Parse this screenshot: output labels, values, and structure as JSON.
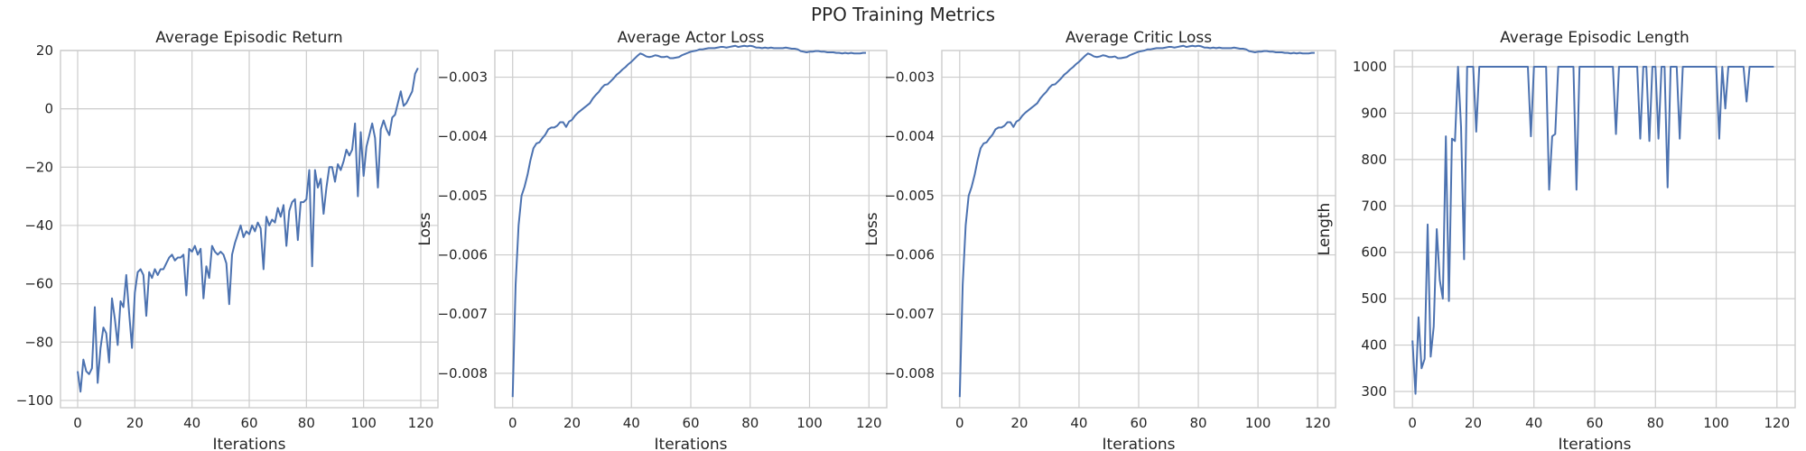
{
  "figure": {
    "title": "PPO Training Metrics",
    "line_color": "#4c72b0",
    "grid_color": "#cccccc",
    "text_color": "#262626"
  },
  "chart_data": [
    {
      "type": "line",
      "title": "Average Episodic Return",
      "xlabel": "Iterations",
      "ylabel": "",
      "xlim": [
        -6,
        126
      ],
      "ylim": [
        -102.5,
        20
      ],
      "xticks": [
        0,
        20,
        40,
        60,
        80,
        100,
        120
      ],
      "yticks": [
        -100,
        -80,
        -60,
        -40,
        -20,
        0,
        20
      ],
      "ytick_labels": [
        "−100",
        "−80",
        "−60",
        "−40",
        "−20",
        "0",
        "20"
      ],
      "grid": true,
      "x": [
        0,
        1,
        2,
        3,
        4,
        5,
        6,
        7,
        8,
        9,
        10,
        11,
        12,
        13,
        14,
        15,
        16,
        17,
        18,
        19,
        20,
        21,
        22,
        23,
        24,
        25,
        26,
        27,
        28,
        29,
        30,
        31,
        32,
        33,
        34,
        35,
        36,
        37,
        38,
        39,
        40,
        41,
        42,
        43,
        44,
        45,
        46,
        47,
        48,
        49,
        50,
        51,
        52,
        53,
        54,
        55,
        56,
        57,
        58,
        59,
        60,
        61,
        62,
        63,
        64,
        65,
        66,
        67,
        68,
        69,
        70,
        71,
        72,
        73,
        74,
        75,
        76,
        77,
        78,
        79,
        80,
        81,
        82,
        83,
        84,
        85,
        86,
        87,
        88,
        89,
        90,
        91,
        92,
        93,
        94,
        95,
        96,
        97,
        98,
        99,
        100,
        101,
        102,
        103,
        104,
        105,
        106,
        107,
        108,
        109,
        110,
        111,
        112,
        113,
        114,
        115,
        116,
        117,
        118,
        119
      ],
      "series": [
        {
          "values": [
            -90,
            -97,
            -86,
            -90,
            -91,
            -89,
            -68,
            -94,
            -82,
            -75,
            -77,
            -87,
            -65,
            -72,
            -81,
            -66,
            -68,
            -57,
            -70,
            -82,
            -63,
            -56,
            -55,
            -57,
            -71,
            -56,
            -58,
            -55,
            -57,
            -55,
            -55,
            -53,
            -51,
            -50,
            -52,
            -51,
            -51,
            -50,
            -64,
            -48,
            -49,
            -47,
            -50,
            -48,
            -65,
            -54,
            -58,
            -47,
            -49,
            -50,
            -49,
            -50,
            -53,
            -67,
            -50,
            -46,
            -43,
            -40,
            -44,
            -42,
            -43,
            -40,
            -42,
            -39,
            -41,
            -55,
            -37,
            -40,
            -38,
            -39,
            -34,
            -37,
            -33,
            -47,
            -35,
            -32,
            -31,
            -45,
            -32,
            -32,
            -31,
            -21,
            -54,
            -21,
            -27,
            -24,
            -36,
            -27,
            -20,
            -20,
            -25,
            -19,
            -21,
            -18,
            -14,
            -16,
            -14,
            -5,
            -30,
            -8,
            -23,
            -13,
            -9,
            -5,
            -10,
            -27,
            -7,
            -4,
            -7,
            -9,
            -3,
            -2,
            2,
            6,
            1,
            2,
            4,
            6,
            12,
            14
          ]
        }
      ]
    },
    {
      "type": "line",
      "title": "Average Actor Loss",
      "xlabel": "Iterations",
      "ylabel": "Loss",
      "xlim": [
        -6,
        126
      ],
      "ylim": [
        -0.00858,
        -0.00255
      ],
      "xticks": [
        0,
        20,
        40,
        60,
        80,
        100,
        120
      ],
      "yticks": [
        -0.008,
        -0.007,
        -0.006,
        -0.005,
        -0.004,
        -0.003
      ],
      "ytick_labels": [
        "−0.008",
        "−0.007",
        "−0.006",
        "−0.005",
        "−0.004",
        "−0.003"
      ],
      "grid": true,
      "x": [
        0,
        1,
        2,
        3,
        4,
        5,
        6,
        7,
        8,
        9,
        10,
        11,
        12,
        13,
        14,
        15,
        16,
        17,
        18,
        19,
        20,
        21,
        22,
        23,
        24,
        25,
        26,
        27,
        28,
        29,
        30,
        31,
        32,
        33,
        34,
        35,
        36,
        37,
        38,
        39,
        40,
        41,
        42,
        43,
        44,
        45,
        46,
        47,
        48,
        49,
        50,
        51,
        52,
        53,
        54,
        55,
        56,
        57,
        58,
        59,
        60,
        61,
        62,
        63,
        64,
        65,
        66,
        67,
        68,
        69,
        70,
        71,
        72,
        73,
        74,
        75,
        76,
        77,
        78,
        79,
        80,
        81,
        82,
        83,
        84,
        85,
        86,
        87,
        88,
        89,
        90,
        91,
        92,
        93,
        94,
        95,
        96,
        97,
        98,
        99,
        100,
        101,
        102,
        103,
        104,
        105,
        106,
        107,
        108,
        109,
        110,
        111,
        112,
        113,
        114,
        115,
        116,
        117,
        118,
        119
      ],
      "series": [
        {
          "values": [
            -0.0084,
            -0.0065,
            -0.0055,
            -0.005,
            -0.00485,
            -0.00465,
            -0.0044,
            -0.0042,
            -0.00412,
            -0.0041,
            -0.00403,
            -0.00397,
            -0.00388,
            -0.00385,
            -0.00385,
            -0.00382,
            -0.00376,
            -0.00376,
            -0.00384,
            -0.00375,
            -0.00372,
            -0.00365,
            -0.0036,
            -0.00356,
            -0.00352,
            -0.00348,
            -0.00344,
            -0.00336,
            -0.0033,
            -0.00325,
            -0.00318,
            -0.00313,
            -0.00312,
            -0.00307,
            -0.00302,
            -0.00296,
            -0.00292,
            -0.00287,
            -0.00283,
            -0.00278,
            -0.00274,
            -0.00269,
            -0.00264,
            -0.0026,
            -0.00262,
            -0.00265,
            -0.00266,
            -0.00265,
            -0.00263,
            -0.00264,
            -0.00266,
            -0.00266,
            -0.00265,
            -0.00268,
            -0.00268,
            -0.00267,
            -0.00266,
            -0.00263,
            -0.00261,
            -0.00259,
            -0.00257,
            -0.00256,
            -0.00255,
            -0.00253,
            -0.00253,
            -0.00252,
            -0.00251,
            -0.00251,
            -0.00251,
            -0.0025,
            -0.00249,
            -0.00249,
            -0.0025,
            -0.00249,
            -0.00248,
            -0.00247,
            -0.00249,
            -0.00248,
            -0.00247,
            -0.00248,
            -0.00247,
            -0.00248,
            -0.0025,
            -0.0025,
            -0.00251,
            -0.0025,
            -0.00251,
            -0.0025,
            -0.00251,
            -0.00251,
            -0.00251,
            -0.00251,
            -0.0025,
            -0.00251,
            -0.00252,
            -0.00252,
            -0.00253,
            -0.00256,
            -0.00257,
            -0.00258,
            -0.00257,
            -0.00257,
            -0.00256,
            -0.00256,
            -0.00257,
            -0.00257,
            -0.00258,
            -0.00258,
            -0.00258,
            -0.00259,
            -0.00259,
            -0.0026,
            -0.00259,
            -0.0026,
            -0.00259,
            -0.0026,
            -0.0026,
            -0.0026,
            -0.00259,
            -0.00259
          ]
        }
      ]
    },
    {
      "type": "line",
      "title": "Average Critic Loss",
      "xlabel": "Iterations",
      "ylabel": "Loss",
      "xlim": [
        -6,
        126
      ],
      "ylim": [
        -0.00858,
        -0.00255
      ],
      "xticks": [
        0,
        20,
        40,
        60,
        80,
        100,
        120
      ],
      "yticks": [
        -0.008,
        -0.007,
        -0.006,
        -0.005,
        -0.004,
        -0.003
      ],
      "ytick_labels": [
        "−0.008",
        "−0.007",
        "−0.006",
        "−0.005",
        "−0.004",
        "−0.003"
      ],
      "grid": true,
      "x": [
        0,
        1,
        2,
        3,
        4,
        5,
        6,
        7,
        8,
        9,
        10,
        11,
        12,
        13,
        14,
        15,
        16,
        17,
        18,
        19,
        20,
        21,
        22,
        23,
        24,
        25,
        26,
        27,
        28,
        29,
        30,
        31,
        32,
        33,
        34,
        35,
        36,
        37,
        38,
        39,
        40,
        41,
        42,
        43,
        44,
        45,
        46,
        47,
        48,
        49,
        50,
        51,
        52,
        53,
        54,
        55,
        56,
        57,
        58,
        59,
        60,
        61,
        62,
        63,
        64,
        65,
        66,
        67,
        68,
        69,
        70,
        71,
        72,
        73,
        74,
        75,
        76,
        77,
        78,
        79,
        80,
        81,
        82,
        83,
        84,
        85,
        86,
        87,
        88,
        89,
        90,
        91,
        92,
        93,
        94,
        95,
        96,
        97,
        98,
        99,
        100,
        101,
        102,
        103,
        104,
        105,
        106,
        107,
        108,
        109,
        110,
        111,
        112,
        113,
        114,
        115,
        116,
        117,
        118,
        119
      ],
      "series": [
        {
          "values": [
            -0.0084,
            -0.0065,
            -0.0055,
            -0.005,
            -0.00485,
            -0.00465,
            -0.0044,
            -0.0042,
            -0.00412,
            -0.0041,
            -0.00403,
            -0.00397,
            -0.00388,
            -0.00385,
            -0.00385,
            -0.00382,
            -0.00376,
            -0.00376,
            -0.00384,
            -0.00375,
            -0.00372,
            -0.00365,
            -0.0036,
            -0.00356,
            -0.00352,
            -0.00348,
            -0.00344,
            -0.00336,
            -0.0033,
            -0.00325,
            -0.00318,
            -0.00313,
            -0.00312,
            -0.00307,
            -0.00302,
            -0.00296,
            -0.00292,
            -0.00287,
            -0.00283,
            -0.00278,
            -0.00274,
            -0.00269,
            -0.00264,
            -0.0026,
            -0.00262,
            -0.00265,
            -0.00266,
            -0.00265,
            -0.00263,
            -0.00264,
            -0.00266,
            -0.00266,
            -0.00265,
            -0.00268,
            -0.00268,
            -0.00267,
            -0.00266,
            -0.00263,
            -0.00261,
            -0.00259,
            -0.00257,
            -0.00256,
            -0.00255,
            -0.00253,
            -0.00253,
            -0.00252,
            -0.00251,
            -0.00251,
            -0.00251,
            -0.0025,
            -0.00249,
            -0.00249,
            -0.0025,
            -0.00249,
            -0.00248,
            -0.00247,
            -0.00249,
            -0.00248,
            -0.00247,
            -0.00248,
            -0.00247,
            -0.00248,
            -0.0025,
            -0.0025,
            -0.00251,
            -0.0025,
            -0.00251,
            -0.0025,
            -0.00251,
            -0.00251,
            -0.00251,
            -0.00251,
            -0.0025,
            -0.00251,
            -0.00252,
            -0.00252,
            -0.00253,
            -0.00256,
            -0.00257,
            -0.00258,
            -0.00257,
            -0.00257,
            -0.00256,
            -0.00256,
            -0.00257,
            -0.00257,
            -0.00258,
            -0.00258,
            -0.00258,
            -0.00259,
            -0.00259,
            -0.0026,
            -0.00259,
            -0.0026,
            -0.00259,
            -0.0026,
            -0.0026,
            -0.0026,
            -0.00259,
            -0.00259
          ]
        }
      ]
    },
    {
      "type": "line",
      "title": "Average Episodic Length",
      "xlabel": "Iterations",
      "ylabel": "Length",
      "xlim": [
        -6,
        126
      ],
      "ylim": [
        265,
        1035
      ],
      "xticks": [
        0,
        20,
        40,
        60,
        80,
        100,
        120
      ],
      "yticks": [
        300,
        400,
        500,
        600,
        700,
        800,
        900,
        1000
      ],
      "ytick_labels": [
        "300",
        "400",
        "500",
        "600",
        "700",
        "800",
        "900",
        "1000"
      ],
      "grid": true,
      "x": [
        0,
        1,
        2,
        3,
        4,
        5,
        6,
        7,
        8,
        9,
        10,
        11,
        12,
        13,
        14,
        15,
        16,
        17,
        18,
        19,
        20,
        21,
        22,
        23,
        24,
        25,
        26,
        27,
        28,
        29,
        30,
        31,
        32,
        33,
        34,
        35,
        36,
        37,
        38,
        39,
        40,
        41,
        42,
        43,
        44,
        45,
        46,
        47,
        48,
        49,
        50,
        51,
        52,
        53,
        54,
        55,
        56,
        57,
        58,
        59,
        60,
        61,
        62,
        63,
        64,
        65,
        66,
        67,
        68,
        69,
        70,
        71,
        72,
        73,
        74,
        75,
        76,
        77,
        78,
        79,
        80,
        81,
        82,
        83,
        84,
        85,
        86,
        87,
        88,
        89,
        90,
        91,
        92,
        93,
        94,
        95,
        96,
        97,
        98,
        99,
        100,
        101,
        102,
        103,
        104,
        105,
        106,
        107,
        108,
        109,
        110,
        111,
        112,
        113,
        114,
        115,
        116,
        117,
        118,
        119
      ],
      "series": [
        {
          "values": [
            410,
            295,
            460,
            350,
            370,
            660,
            375,
            440,
            650,
            540,
            500,
            850,
            495,
            845,
            840,
            1000,
            870,
            585,
            1000,
            1000,
            1000,
            860,
            1000,
            1000,
            1000,
            1000,
            1000,
            1000,
            1000,
            1000,
            1000,
            1000,
            1000,
            1000,
            1000,
            1000,
            1000,
            1000,
            1000,
            850,
            1000,
            1000,
            1000,
            1000,
            1000,
            735,
            850,
            855,
            1000,
            1000,
            1000,
            1000,
            1000,
            1000,
            735,
            1000,
            1000,
            1000,
            1000,
            1000,
            1000,
            1000,
            1000,
            1000,
            1000,
            1000,
            1000,
            855,
            1000,
            1000,
            1000,
            1000,
            1000,
            1000,
            1000,
            845,
            1000,
            1000,
            840,
            1000,
            1000,
            845,
            1000,
            1000,
            740,
            1000,
            1000,
            1000,
            845,
            1000,
            1000,
            1000,
            1000,
            1000,
            1000,
            1000,
            1000,
            1000,
            1000,
            1000,
            1000,
            845,
            1000,
            910,
            1000,
            1000,
            1000,
            1000,
            1000,
            1000,
            925,
            1000,
            1000,
            1000,
            1000,
            1000,
            1000,
            1000,
            1000,
            1000
          ]
        }
      ]
    }
  ]
}
